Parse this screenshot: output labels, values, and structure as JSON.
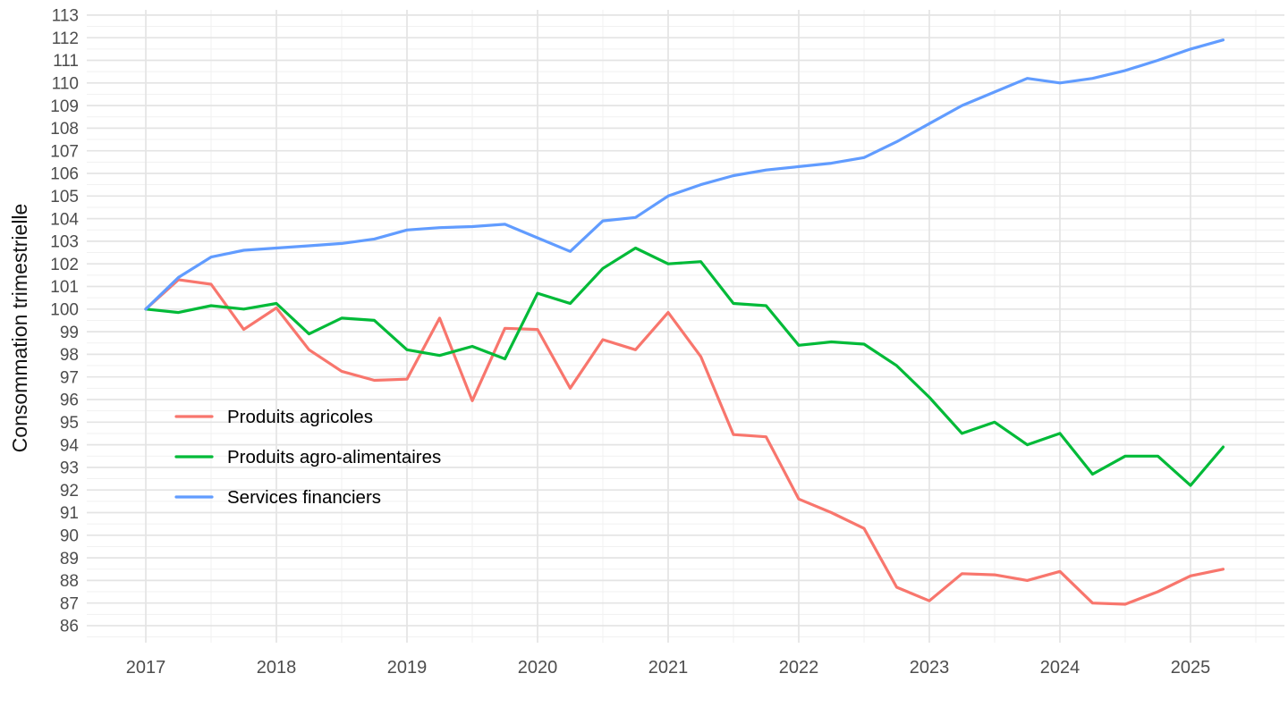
{
  "chart_data": {
    "type": "line",
    "title": "",
    "xlabel": "",
    "ylabel": "Consommation trimestrielle",
    "ylim": [
      86,
      113
    ],
    "y_tick_step": 1,
    "x_ticks": [
      2017,
      2018,
      2019,
      2020,
      2021,
      2022,
      2023,
      2024,
      2025
    ],
    "x_start": 2017,
    "x_step": 0.25,
    "grid": "major+minor",
    "legend_position": "inside-left",
    "series": [
      {
        "name": "Produits agricoles",
        "color": "#F8766D",
        "values": [
          100,
          101.3,
          101.1,
          99.1,
          100.05,
          98.2,
          97.25,
          96.85,
          96.9,
          99.6,
          95.95,
          99.15,
          99.1,
          96.5,
          98.65,
          98.2,
          99.85,
          97.9,
          94.45,
          94.35,
          91.6,
          91.0,
          90.3,
          87.7,
          87.1,
          88.3,
          88.25,
          88.0,
          88.4,
          87.0,
          86.95,
          87.5,
          88.2,
          88.5
        ]
      },
      {
        "name": "Produits agro-alimentaires",
        "color": "#00BA38",
        "values": [
          100,
          99.85,
          100.15,
          100.0,
          100.25,
          98.9,
          99.6,
          99.5,
          98.2,
          97.95,
          98.35,
          97.8,
          100.7,
          100.25,
          101.8,
          102.7,
          102.0,
          102.1,
          100.25,
          100.15,
          98.4,
          98.55,
          98.45,
          97.5,
          96.1,
          94.5,
          95.0,
          94.0,
          94.5,
          92.7,
          93.5,
          93.5,
          92.2,
          93.9
        ]
      },
      {
        "name": "Services financiers",
        "color": "#619CFF",
        "values": [
          100,
          101.4,
          102.3,
          102.6,
          102.7,
          102.8,
          102.9,
          103.1,
          103.5,
          103.6,
          103.65,
          103.75,
          103.15,
          102.55,
          103.9,
          104.05,
          105.0,
          105.5,
          105.9,
          106.15,
          106.3,
          106.45,
          106.7,
          107.4,
          108.2,
          109.0,
          109.6,
          110.2,
          110.0,
          110.2,
          110.55,
          111.0,
          111.5,
          111.9
        ]
      }
    ]
  },
  "colors": {
    "background": "#FFFFFF",
    "grid_major": "#E4E4E4",
    "grid_minor": "#F1F1F1",
    "axis_text": "#4D4D4D",
    "title_text": "#141414",
    "legend_text": "#000000"
  }
}
